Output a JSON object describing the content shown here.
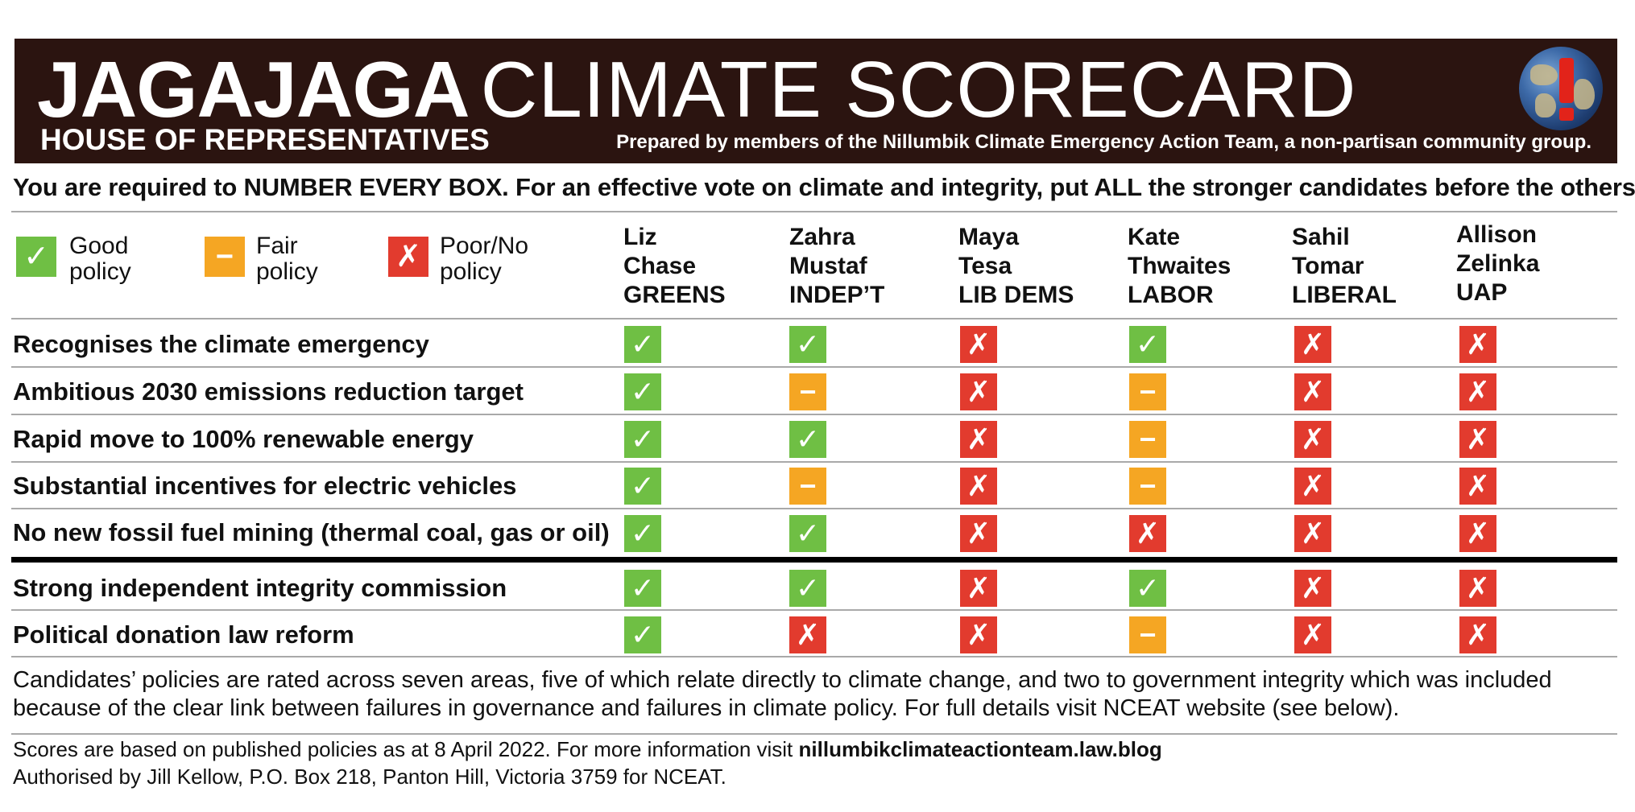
{
  "header": {
    "title_strong": "JAGAJAGA",
    "title_light": "CLIMATE SCORECARD",
    "subtitle": "HOUSE OF REPRESENTATIVES",
    "prepared_by": "Prepared by members of the Nillumbik Climate Emergency Action Team, a non-partisan community group.",
    "logo_icon": "globe-exclamation-icon"
  },
  "instruction": "You are required to NUMBER EVERY BOX. For an effective vote on climate and integrity, put ALL the stronger candidates before the others.",
  "legend": [
    {
      "key": "good",
      "symbol": "✓",
      "label_line1": "Good",
      "label_line2": "policy",
      "color": "#6fbf44"
    },
    {
      "key": "fair",
      "symbol": "−",
      "label_line1": "Fair",
      "label_line2": "policy",
      "color": "#f5a623"
    },
    {
      "key": "poor",
      "symbol": "✗",
      "label_line1": "Poor/No",
      "label_line2": "policy",
      "color": "#e23b2e"
    }
  ],
  "candidates": [
    {
      "first": "Liz",
      "last": "Chase",
      "party": "GREENS"
    },
    {
      "first": "Zahra",
      "last": "Mustaf",
      "party": "INDEP’T"
    },
    {
      "first": "Maya",
      "last": "Tesa",
      "party": "LIB DEMS"
    },
    {
      "first": "Kate",
      "last": "Thwaites",
      "party": "LABOR"
    },
    {
      "first": "Sahil",
      "last": "Tomar",
      "party": "LIBERAL"
    },
    {
      "first": "Allison",
      "last": "Zelinka",
      "party": "UAP"
    }
  ],
  "climate_rows": [
    {
      "label": "Recognises the climate emergency",
      "scores": [
        "good",
        "good",
        "poor",
        "good",
        "poor",
        "poor"
      ]
    },
    {
      "label": "Ambitious 2030 emissions reduction target",
      "scores": [
        "good",
        "fair",
        "poor",
        "fair",
        "poor",
        "poor"
      ]
    },
    {
      "label": "Rapid move to 100% renewable energy",
      "scores": [
        "good",
        "good",
        "poor",
        "fair",
        "poor",
        "poor"
      ]
    },
    {
      "label": "Substantial incentives for electric vehicles",
      "scores": [
        "good",
        "fair",
        "poor",
        "fair",
        "poor",
        "poor"
      ]
    },
    {
      "label": "No new fossil fuel mining (thermal coal, gas or oil)",
      "scores": [
        "good",
        "good",
        "poor",
        "poor",
        "poor",
        "poor"
      ]
    }
  ],
  "integrity_rows": [
    {
      "label": "Strong independent integrity commission",
      "scores": [
        "good",
        "good",
        "poor",
        "good",
        "poor",
        "poor"
      ]
    },
    {
      "label": "Political donation law reform",
      "scores": [
        "good",
        "poor",
        "poor",
        "fair",
        "poor",
        "poor"
      ]
    }
  ],
  "note": "Candidates’ policies are rated across seven areas, five of which relate directly to climate change, and two to government integrity which was included because of the clear link between failures in governance and failures in climate policy. For full details visit NCEAT website (see below).",
  "footer": {
    "line1_prefix": "Scores are based on published policies as at 8 April 2022. For more information visit ",
    "line1_link": "nillumbikclimateactionteam.law.blog",
    "line2": "Authorised by Jill Kellow, P.O. Box 218, Panton Hill, Victoria 3759 for NCEAT."
  }
}
